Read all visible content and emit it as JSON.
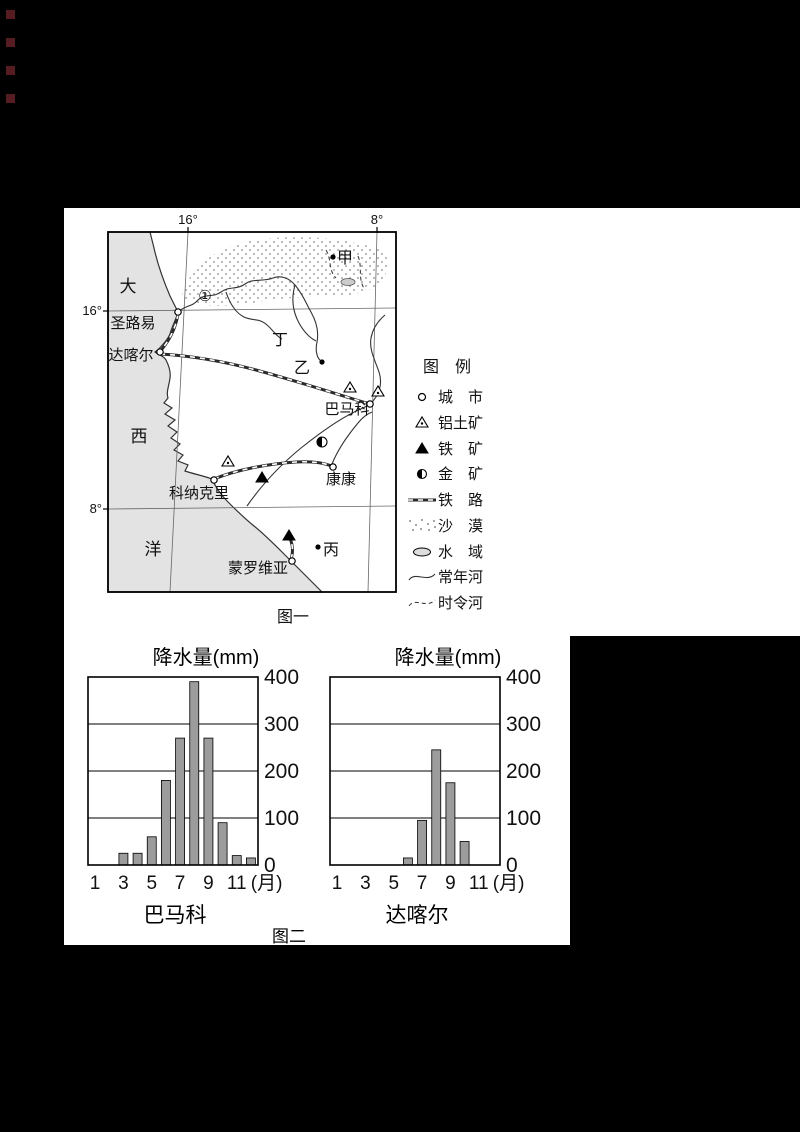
{
  "figure1": {
    "caption": "图一",
    "map": {
      "ocean_name_chars": [
        "大",
        "西",
        "洋"
      ],
      "top_lon_labels": [
        "16°",
        "8°"
      ],
      "left_lat_labels": [
        "16°",
        "8°"
      ],
      "marker_1": "①",
      "point_labels": {
        "jia": "甲",
        "yi": "乙",
        "bing": "丙",
        "ding": "丁"
      },
      "cities": {
        "saint_louis": "圣路易",
        "dakar": "达喀尔",
        "bamako": "巴马科",
        "kankan": "康康",
        "conakry": "科纳克里",
        "monrovia": "蒙罗维亚"
      }
    },
    "legend": {
      "title": "图　例",
      "items": [
        {
          "symbol": "city-icon",
          "label": "城　市"
        },
        {
          "symbol": "bauxite-icon",
          "label": "铝土矿"
        },
        {
          "symbol": "iron-ore-icon",
          "label": "铁　矿"
        },
        {
          "symbol": "gold-ore-icon",
          "label": "金　矿"
        },
        {
          "symbol": "railway-icon",
          "label": "铁　路"
        },
        {
          "symbol": "desert-icon",
          "label": "沙　漠"
        },
        {
          "symbol": "water-icon",
          "label": "水　域"
        },
        {
          "symbol": "perennial-river-icon",
          "label": "常年河"
        },
        {
          "symbol": "seasonal-river-icon",
          "label": "时令河"
        }
      ]
    }
  },
  "figure2": {
    "caption": "图二"
  },
  "chart_data": [
    {
      "type": "bar",
      "title": "降水量(mm)",
      "city": "巴马科",
      "x": [
        1,
        2,
        3,
        4,
        5,
        6,
        7,
        8,
        9,
        10,
        11,
        12
      ],
      "values": [
        0,
        0,
        25,
        25,
        60,
        180,
        270,
        390,
        270,
        90,
        20,
        15
      ],
      "xticks": [
        1,
        3,
        5,
        7,
        9,
        11
      ],
      "x_unit": "(月)",
      "yticks": [
        0,
        100,
        200,
        300,
        400
      ],
      "ylim": [
        0,
        400
      ],
      "grid": true,
      "legend_position": "none",
      "y_axis_side": "right",
      "bar_color": "#9c9c9c"
    },
    {
      "type": "bar",
      "title": "降水量(mm)",
      "city": "达喀尔",
      "x": [
        1,
        2,
        3,
        4,
        5,
        6,
        7,
        8,
        9,
        10,
        11,
        12
      ],
      "values": [
        0,
        0,
        0,
        0,
        0,
        15,
        95,
        245,
        175,
        50,
        0,
        0
      ],
      "xticks": [
        1,
        3,
        5,
        7,
        9,
        11
      ],
      "x_unit": "(月)",
      "yticks": [
        0,
        100,
        200,
        300,
        400
      ],
      "ylim": [
        0,
        400
      ],
      "grid": true,
      "legend_position": "none",
      "y_axis_side": "right",
      "bar_color": "#9c9c9c"
    }
  ]
}
